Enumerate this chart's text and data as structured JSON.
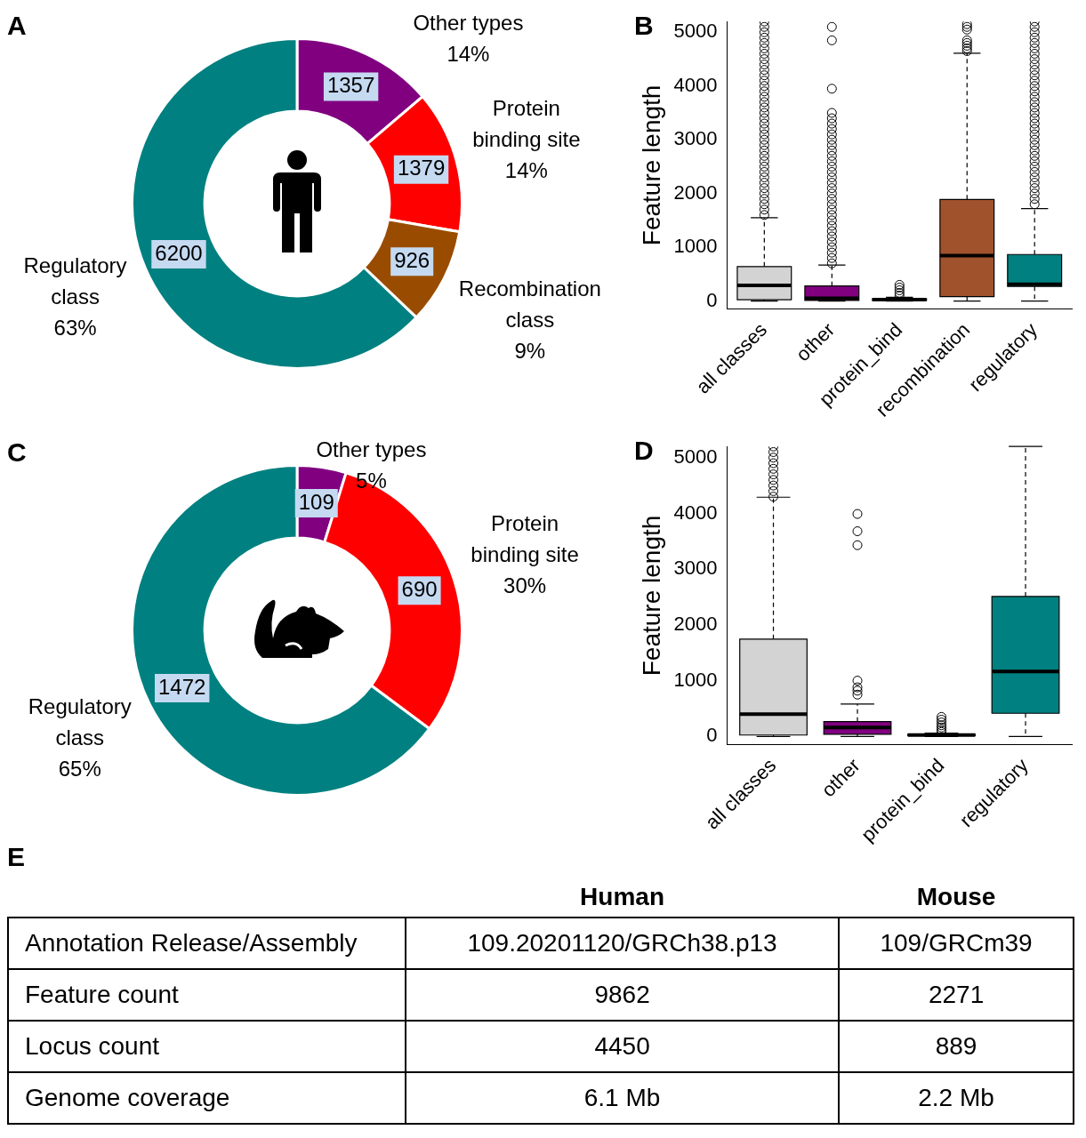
{
  "chart_data": [
    {
      "type": "donut",
      "title": "A",
      "categories": [
        "Other types",
        "Protein binding site",
        "Recombination class",
        "Regulatory class"
      ],
      "values": [
        1357,
        1379,
        926,
        6200
      ],
      "colors": [
        "#800080",
        "#ff0000",
        "#994c00",
        "#008080"
      ],
      "data_labels": true,
      "annotations": [
        {
          "text": "14%",
          "x": "Other types"
        },
        {
          "text": "14%",
          "x": "Protein binding site"
        },
        {
          "text": "9%",
          "x": "Recombination class"
        },
        {
          "text": "63%",
          "x": "Regulatory class"
        }
      ]
    },
    {
      "type": "box",
      "title": "B",
      "ylabel": "Feature length",
      "categories": [
        "all classes",
        "other",
        "protein_bind",
        "recombination",
        "regulatory"
      ],
      "colors": [
        "#d3d3d3",
        "#800080",
        "#d3d3d3",
        "#a0522d",
        "#008080"
      ],
      "ylim": [
        -150,
        5200
      ],
      "yticks": [
        0,
        1000,
        2000,
        3000,
        4000,
        5000
      ],
      "boxes": [
        {
          "low": 0,
          "q1": 25,
          "median": 290,
          "q3": 640,
          "high": 1550,
          "outliers": [
            1600,
            1700,
            1800,
            1900,
            2000,
            2100,
            2200,
            2300,
            2400,
            2500,
            2600,
            2700,
            2800,
            2900,
            3000,
            3100,
            3200,
            3300,
            3400,
            3500,
            3600,
            3700,
            3800,
            3900,
            4000,
            4100,
            4200,
            4300,
            4400,
            4500,
            4600,
            4700,
            4800,
            4900,
            5000,
            5100,
            5200
          ]
        },
        {
          "low": 0,
          "q1": 10,
          "median": 50,
          "q3": 280,
          "high": 670,
          "outliers": [
            700,
            800,
            900,
            1000,
            1100,
            1200,
            1300,
            1400,
            1500,
            1600,
            1700,
            1800,
            1900,
            2000,
            2100,
            2200,
            2300,
            2400,
            2500,
            2600,
            2700,
            2800,
            2900,
            3000,
            3100,
            3200,
            3300,
            3400,
            3500,
            3950,
            4850,
            5100
          ]
        },
        {
          "low": 0,
          "q1": 10,
          "median": 25,
          "q3": 40,
          "high": 70,
          "outliers": [
            100,
            150,
            200,
            250,
            300
          ]
        },
        {
          "low": 0,
          "q1": 80,
          "median": 845,
          "q3": 1890,
          "high": 4610,
          "outliers": [
            4650,
            4700,
            4750,
            4800,
            4850,
            5050,
            5100,
            5150
          ]
        },
        {
          "low": 0,
          "q1": 270,
          "median": 310,
          "q3": 865,
          "high": 1720,
          "outliers": [
            1800,
            1900,
            2000,
            2100,
            2200,
            2300,
            2400,
            2500,
            2600,
            2700,
            2800,
            2900,
            3000,
            3100,
            3200,
            3300,
            3400,
            3500,
            3600,
            3700,
            3800,
            3900,
            4000,
            4100,
            4200,
            4300,
            4400,
            4500,
            4600,
            4700,
            4800,
            4900,
            5000,
            5100,
            5200
          ]
        }
      ]
    },
    {
      "type": "donut",
      "title": "C",
      "categories": [
        "Other types",
        "Protein binding site",
        "Regulatory class"
      ],
      "values": [
        109,
        690,
        1472
      ],
      "colors": [
        "#800080",
        "#ff0000",
        "#008080"
      ],
      "data_labels": true,
      "annotations": [
        {
          "text": "5%",
          "x": "Other types"
        },
        {
          "text": "30%",
          "x": "Protein binding site"
        },
        {
          "text": "65%",
          "x": "Regulatory class"
        }
      ]
    },
    {
      "type": "box",
      "title": "D",
      "ylabel": "Feature length",
      "categories": [
        "all classes",
        "other",
        "protein_bind",
        "regulatory"
      ],
      "colors": [
        "#d3d3d3",
        "#800080",
        "#d3d3d3",
        "#008080"
      ],
      "ylim": [
        -150,
        5200
      ],
      "yticks": [
        0,
        1000,
        2000,
        3000,
        4000,
        5000
      ],
      "boxes": [
        {
          "low": 0,
          "q1": 25,
          "median": 400,
          "q3": 1745,
          "high": 4290,
          "outliers": [
            4300,
            4400,
            4500,
            4600,
            4700,
            4800,
            4900,
            5000,
            5100,
            5200
          ]
        },
        {
          "low": 0,
          "q1": 40,
          "median": 160,
          "q3": 265,
          "high": 580,
          "outliers": [
            750,
            820,
            880,
            1000,
            3430,
            3680,
            3990
          ]
        },
        {
          "low": 0,
          "q1": 15,
          "median": 25,
          "q3": 40,
          "high": 60,
          "outliers": [
            80,
            120,
            160,
            200,
            250,
            300,
            350
          ]
        },
        {
          "low": 0,
          "q1": 415,
          "median": 1165,
          "q3": 2510,
          "high": 5200
        }
      ]
    },
    {
      "type": "other",
      "title": "E",
      "categories": [
        "Human",
        "Mouse"
      ],
      "y_categories": [
        "Annotation Release/Assembly",
        "Feature count",
        "Locus count",
        "Genome coverage"
      ],
      "cell_labels": [
        [
          "109.20201120/GRCh38.p13",
          "109/GRCm39"
        ],
        [
          "9862",
          "2271"
        ],
        [
          "4450",
          "889"
        ],
        [
          "6.1 Mb",
          "2.2 Mb"
        ]
      ]
    }
  ]
}
